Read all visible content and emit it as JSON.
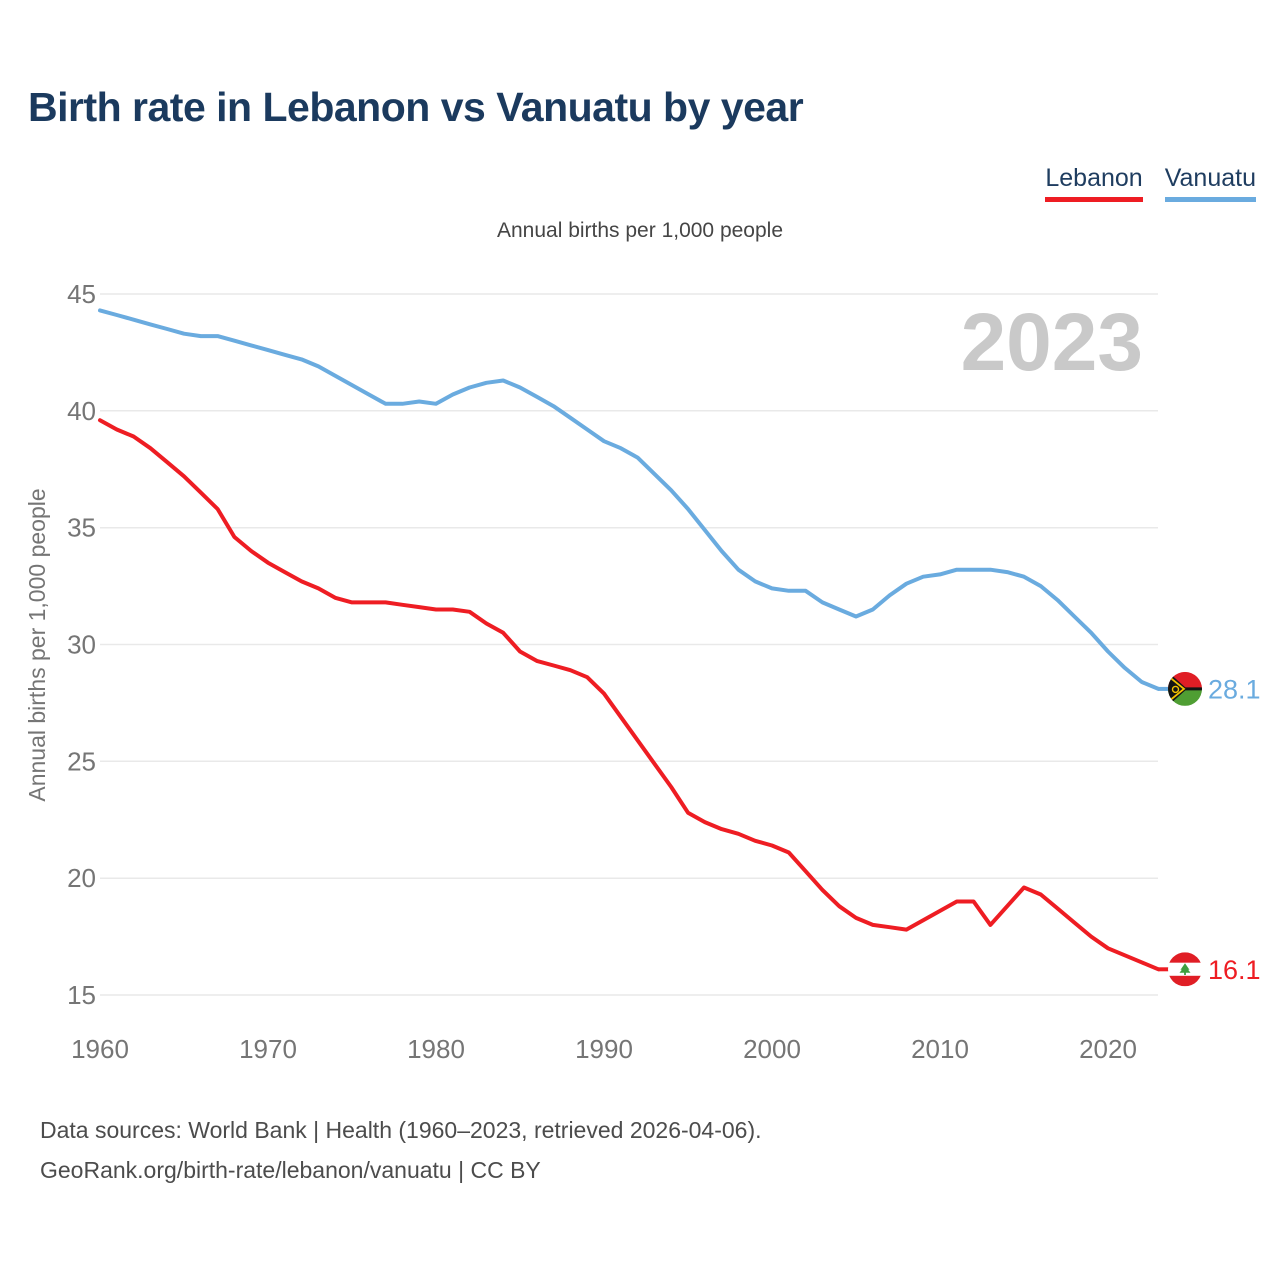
{
  "header": {
    "title": "Birth rate in Lebanon vs Vanuatu by year"
  },
  "legend": {
    "position": "top-right",
    "items": [
      {
        "label": "Lebanon",
        "color": "#ee1d23"
      },
      {
        "label": "Vanuatu",
        "color": "#6aabdf"
      }
    ]
  },
  "chart_data": {
    "type": "line",
    "title": "Birth rate in Lebanon vs Vanuatu by year",
    "subtitle": "Annual births per 1,000 people",
    "ylabel": "Annual births per 1,000 people",
    "xlabel": "",
    "grid": true,
    "watermark": "2023",
    "x_start": 1960,
    "x_end": 2023,
    "x_ticks": [
      1960,
      1970,
      1980,
      1990,
      2000,
      2010,
      2020
    ],
    "y_ticks": [
      45,
      40,
      35,
      30,
      25,
      20,
      15
    ],
    "ylim": [
      15,
      45
    ],
    "series": [
      {
        "name": "Vanuatu",
        "color": "#6aabdf",
        "end_label": "28.1",
        "end_value": 28.1,
        "flag": "vanuatu",
        "values": [
          44.3,
          44.1,
          43.9,
          43.7,
          43.5,
          43.3,
          43.2,
          43.2,
          43.0,
          42.8,
          42.6,
          42.4,
          42.2,
          41.9,
          41.5,
          41.1,
          40.7,
          40.3,
          40.3,
          40.4,
          40.3,
          40.7,
          41.0,
          41.2,
          41.3,
          41.0,
          40.6,
          40.2,
          39.7,
          39.2,
          38.7,
          38.4,
          38.0,
          37.3,
          36.6,
          35.8,
          34.9,
          34.0,
          33.2,
          32.7,
          32.4,
          32.3,
          32.3,
          31.8,
          31.5,
          31.2,
          31.5,
          32.1,
          32.6,
          32.9,
          33.0,
          33.2,
          33.2,
          33.2,
          33.1,
          32.9,
          32.5,
          31.9,
          31.2,
          30.5,
          29.7,
          29.0,
          28.4,
          28.1
        ]
      },
      {
        "name": "Lebanon",
        "color": "#ee1d23",
        "end_label": "16.1",
        "end_value": 16.1,
        "flag": "lebanon",
        "values": [
          39.6,
          39.2,
          38.9,
          38.4,
          37.8,
          37.2,
          36.5,
          35.8,
          34.6,
          34.0,
          33.5,
          33.1,
          32.7,
          32.4,
          32.0,
          31.8,
          31.8,
          31.8,
          31.7,
          31.6,
          31.5,
          31.5,
          31.4,
          30.9,
          30.5,
          29.7,
          29.3,
          29.1,
          28.9,
          28.6,
          27.9,
          26.9,
          25.9,
          24.9,
          23.9,
          22.8,
          22.4,
          22.1,
          21.9,
          21.6,
          21.4,
          21.1,
          20.3,
          19.5,
          18.8,
          18.3,
          18.0,
          17.9,
          17.8,
          18.2,
          18.6,
          19.0,
          19.0,
          18.0,
          18.8,
          19.6,
          19.3,
          18.7,
          18.1,
          17.5,
          17.0,
          16.7,
          16.4,
          16.1
        ]
      }
    ]
  },
  "flags": {
    "lebanon": {
      "band_color": "#e01e25",
      "cedar_color": "#3f9e3f"
    },
    "vanuatu": {
      "top_color": "#e01e25",
      "bottom_color": "#4f9e33",
      "triangle_color": "#141414",
      "emblem_color": "#f3c200"
    }
  },
  "footer": {
    "line1": "Data sources: World Bank | Health (1960–2023, retrieved 2026-04-06).",
    "line2": "GeoRank.org/birth-rate/lebanon/vanuatu | CC BY"
  }
}
